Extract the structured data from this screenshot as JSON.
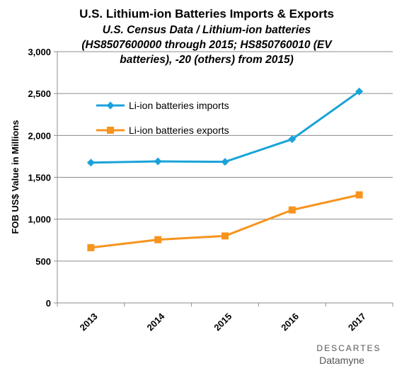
{
  "chart_data": {
    "type": "line",
    "title": "U.S. Lithium-ion Batteries Imports & Exports",
    "subtitle_lines": [
      "U.S. Census Data /  Lithium-ion batteries",
      "(HS8507600000 through 2015; HS850760010 (EV",
      "batteries), -20 (others) from 2015)"
    ],
    "ylabel": "FOB US$ Value in Millions",
    "xlabel": "",
    "categories": [
      "2013",
      "2014",
      "2015",
      "2016",
      "2017"
    ],
    "ylim": [
      0,
      3000
    ],
    "yticks": [
      0,
      500,
      1000,
      1500,
      2000,
      2500,
      3000
    ],
    "ytick_labels": [
      "0",
      "500",
      "1,000",
      "1,500",
      "2,000",
      "2,500",
      "3,000"
    ],
    "grid": true,
    "legend_position": "upper-left",
    "series": [
      {
        "name": "Li-ion batteries imports",
        "color": "#1aa3d9",
        "marker": "diamond",
        "values": [
          1675,
          1690,
          1685,
          1955,
          2525
        ]
      },
      {
        "name": "Li-ion batteries exports",
        "color": "#f7941d",
        "marker": "square",
        "values": [
          660,
          755,
          800,
          1110,
          1290
        ]
      }
    ]
  },
  "branding": {
    "line1": "DESCARTES",
    "line2": "Datamyne"
  }
}
